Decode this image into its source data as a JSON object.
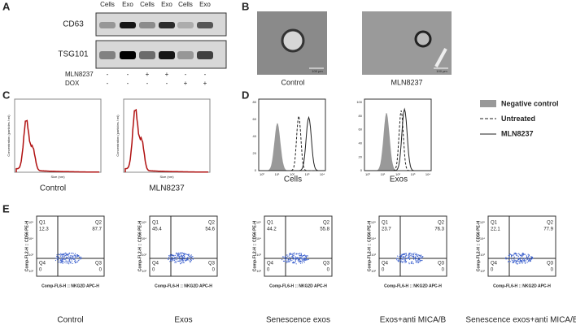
{
  "panels": {
    "A": {
      "label": "A",
      "columns": [
        "Cells",
        "Exo",
        "Cells",
        "Exo",
        "Cells",
        "Exo"
      ],
      "rows": [
        "CD63",
        "TSG101"
      ],
      "treatments": [
        {
          "name": "MLN8237",
          "signs": [
            "-",
            "-",
            "+",
            "+",
            "-",
            "-"
          ]
        },
        {
          "name": "DOX",
          "signs": [
            "-",
            "-",
            "-",
            "-",
            "+",
            "+"
          ]
        }
      ]
    },
    "B": {
      "label": "B",
      "images": [
        {
          "caption": "Control",
          "scale": "100 μm"
        },
        {
          "caption": "MLN8237",
          "scale": "100 μm"
        }
      ]
    },
    "C": {
      "label": "C",
      "y_label": "Concentration (particles / ml)",
      "x_label": "Size (nm)",
      "plots": [
        {
          "caption": "Control"
        },
        {
          "caption": "MLN8237"
        }
      ]
    },
    "D": {
      "label": "D",
      "plots": [
        {
          "caption": "Cells",
          "yticks": [
            0,
            20,
            40,
            60,
            80
          ]
        },
        {
          "caption": "Exos",
          "yticks": [
            0,
            20,
            40,
            60,
            80,
            100
          ]
        }
      ],
      "xticks": [
        "10⁰",
        "10¹",
        "10²",
        "10³",
        "10⁴"
      ],
      "legend": [
        "Negative control",
        "Untreated",
        "MLN8237"
      ]
    },
    "E": {
      "label": "E",
      "y_label": "Comp-FL2-H :: CD56 PE-H",
      "x_label": "Comp-FL6-H :: NKG2D APC-H",
      "ticks": [
        "10²",
        "10³",
        "10⁴",
        "10⁵"
      ],
      "quadrant_names": [
        "Q1",
        "Q2",
        "Q4",
        "Q3"
      ],
      "plots": [
        {
          "caption": "Control",
          "quadrants": [
            12.3,
            87.7,
            0,
            0
          ]
        },
        {
          "caption": "Exos",
          "quadrants": [
            45.4,
            54.6,
            0,
            0
          ]
        },
        {
          "caption": "Senescence exos",
          "quadrants": [
            44.2,
            55.8,
            0,
            0
          ]
        },
        {
          "caption": "Exos+anti MICA/B",
          "quadrants": [
            23.7,
            76.3,
            0,
            0
          ]
        },
        {
          "caption": "Senescence exos+anti MICA/B",
          "quadrants": [
            22.1,
            77.9,
            0,
            0
          ]
        }
      ]
    }
  }
}
